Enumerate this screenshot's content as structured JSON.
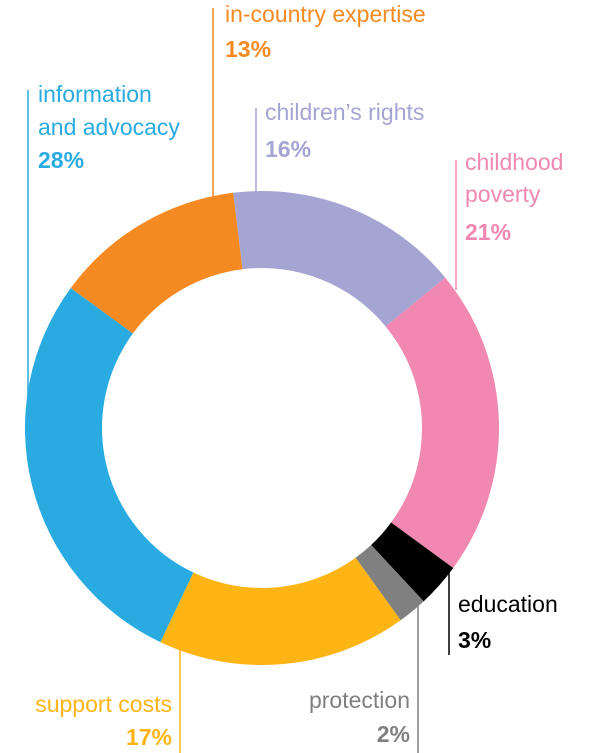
{
  "chart_data": {
    "type": "donut",
    "categories": [
      "children’s rights",
      "childhood poverty",
      "education",
      "protection",
      "support costs",
      "information and advocacy",
      "in-country expertise"
    ],
    "values": [
      16,
      21,
      3,
      2,
      17,
      28,
      13
    ],
    "value_labels": [
      "16%",
      "21%",
      "3%",
      "2%",
      "17%",
      "28%",
      "13%"
    ],
    "colors": [
      "#a5a5d3",
      "#f088b1",
      "#000000",
      "#808080",
      "#fdb515",
      "#29abe2",
      "#f58a22"
    ]
  }
}
